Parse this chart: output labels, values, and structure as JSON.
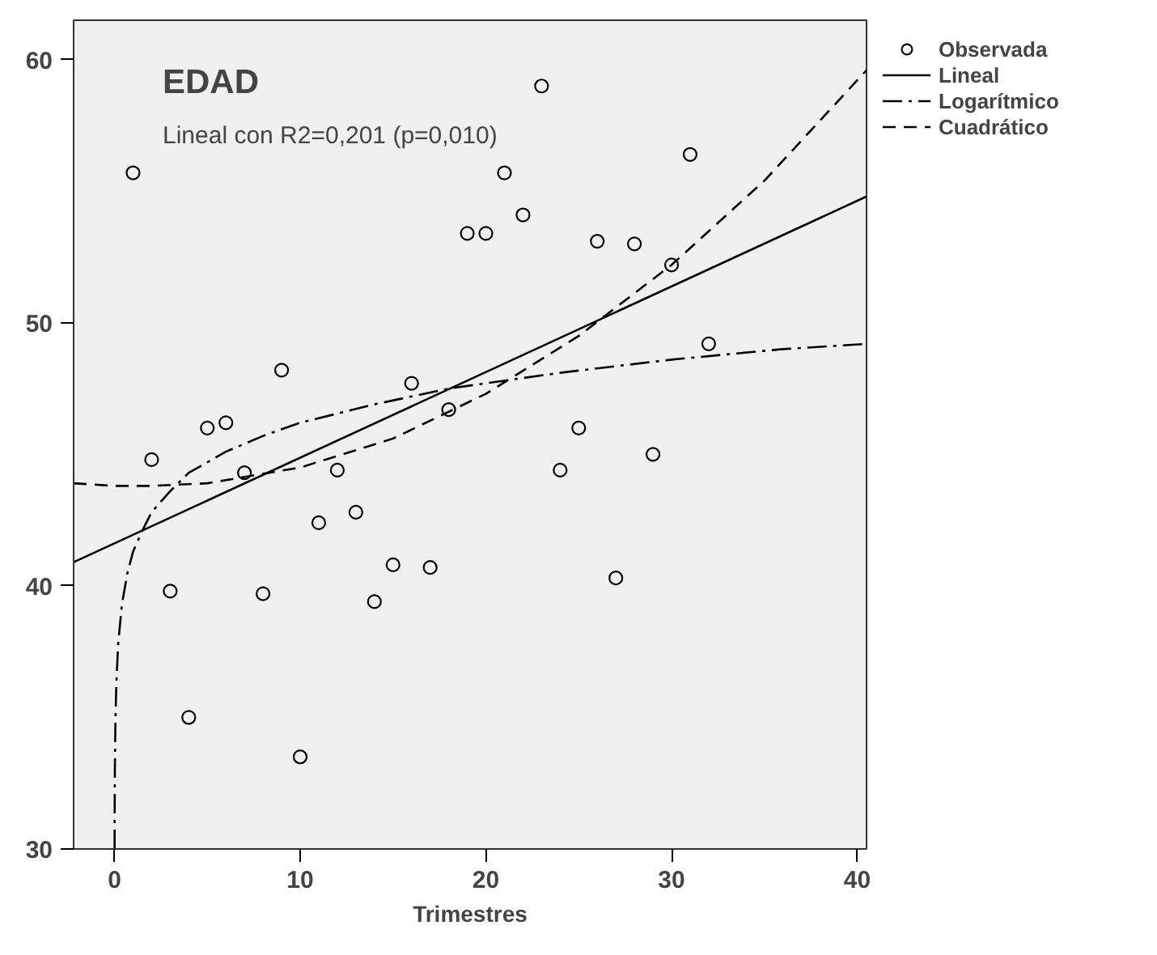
{
  "chart_data": {
    "type": "scatter",
    "title": "EDAD",
    "subtitle": "Lineal con R2=0,201 (p=0,010)",
    "xlabel": "Trimestres",
    "xlim": [
      -2.2,
      40.5
    ],
    "ylim": [
      30,
      61.5
    ],
    "xticks": [
      0,
      10,
      20,
      30,
      40
    ],
    "yticks": [
      30,
      40,
      50,
      60
    ],
    "grid": false,
    "legend": "right",
    "series": [
      {
        "name": "Observada",
        "marker": "circle",
        "color": "#000000",
        "x": [
          1,
          2,
          3,
          4,
          5,
          6,
          7,
          8,
          9,
          10,
          11,
          12,
          13,
          14,
          15,
          16,
          17,
          18,
          19,
          20,
          21,
          22,
          23,
          24,
          25,
          26,
          27,
          28,
          29,
          30,
          31,
          32
        ],
        "values": [
          55.7,
          44.8,
          39.8,
          35.0,
          46.0,
          46.2,
          44.3,
          39.7,
          48.2,
          33.5,
          42.4,
          44.4,
          42.8,
          39.4,
          40.8,
          47.7,
          40.7,
          46.7,
          53.4,
          53.4,
          55.7,
          54.1,
          59.0,
          44.4,
          46.0,
          53.1,
          40.3,
          53.0,
          45.0,
          52.2,
          56.4,
          49.2
        ]
      },
      {
        "name": "Lineal",
        "type": "line",
        "line_style": "solid",
        "color": "#000000",
        "x": [
          -2.2,
          40.5
        ],
        "values": [
          40.9,
          54.8
        ]
      },
      {
        "name": "Logarítmico",
        "type": "line",
        "line_style": "dashdot",
        "color": "#000000",
        "x": [
          0.0053,
          0.01,
          0.02,
          0.05,
          0.1,
          0.2,
          0.4,
          0.7,
          1,
          1.5,
          2,
          3,
          4,
          6,
          8,
          10,
          14,
          18,
          24,
          30,
          36,
          40.5
        ],
        "values": [
          30.0,
          31.4,
          32.9,
          34.8,
          36.3,
          37.8,
          39.3,
          40.5,
          41.3,
          42.1,
          42.8,
          43.6,
          44.3,
          45.1,
          45.7,
          46.2,
          46.9,
          47.5,
          48.1,
          48.6,
          49.0,
          49.2
        ]
      },
      {
        "name": "Cuadrático",
        "type": "line",
        "line_style": "dashed",
        "color": "#000000",
        "x": [
          -2.2,
          0,
          2,
          5,
          10,
          15,
          20,
          25,
          30,
          35,
          40.5
        ],
        "values": [
          43.9,
          43.8,
          43.8,
          43.9,
          44.5,
          45.6,
          47.3,
          49.5,
          52.2,
          55.4,
          59.6
        ]
      }
    ]
  }
}
